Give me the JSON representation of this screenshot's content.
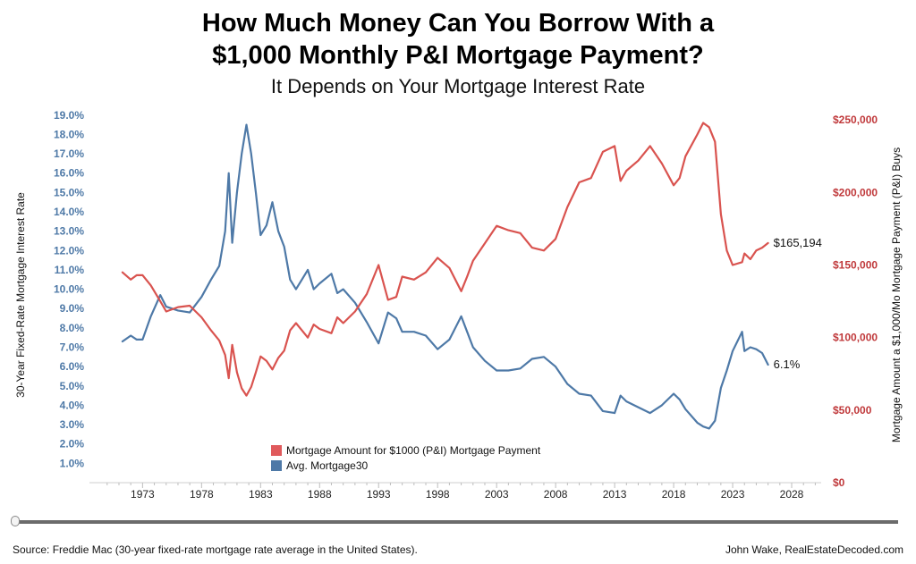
{
  "chart_data": {
    "type": "line",
    "title": "How Much Money Can You Borrow With a $1,000 Monthly P&I Mortgage Payment?",
    "title_line1": "How Much Money Can You Borrow With a",
    "title_line2": "$1,000 Monthly P&I Mortgage Payment?",
    "subtitle": "It Depends on Your Mortgage Interest Rate",
    "ylabel_left": "30-Year Fixed-Rate Mortgage Interest Rate",
    "ylabel_right": "Mortgage Amount a $1,000/Mo Mortgage Payment (P&I) Buys",
    "xlim": [
      1968.5,
      2030.5
    ],
    "ylim_left": [
      0,
      19.5
    ],
    "ylim_right": [
      0,
      260000
    ],
    "x_ticks": [
      "1973",
      "1978",
      "1983",
      "1988",
      "1993",
      "1998",
      "2003",
      "2008",
      "2013",
      "2018",
      "2023",
      "2028"
    ],
    "y_ticks_left": [
      "1.0%",
      "2.0%",
      "3.0%",
      "4.0%",
      "5.0%",
      "6.0%",
      "7.0%",
      "8.0%",
      "9.0%",
      "10.0%",
      "11.0%",
      "12.0%",
      "13.0%",
      "14.0%",
      "15.0%",
      "16.0%",
      "17.0%",
      "18.0%",
      "19.0%"
    ],
    "y_ticks_right": [
      "$0",
      "$50,000",
      "$100,000",
      "$150,000",
      "$200,000",
      "$250,000"
    ],
    "legend": {
      "position": "bottom-center",
      "items": [
        "Mortgage Amount for $1000 (P&I) Mortgage Payment",
        "Avg. Mortgage30"
      ]
    },
    "series": [
      {
        "name": "Avg. Mortgage30",
        "color": "#4e79a7",
        "axis": "left",
        "end_label": "6.1%",
        "x": [
          1971.3,
          1972,
          1972.5,
          1973,
          1973.7,
          1974.5,
          1975,
          1976,
          1977,
          1978,
          1978.8,
          1979.5,
          1980,
          1980.3,
          1980.6,
          1981,
          1981.4,
          1981.8,
          1982.2,
          1982.6,
          1983,
          1983.5,
          1984,
          1984.5,
          1985,
          1985.5,
          1986,
          1986.5,
          1987,
          1987.5,
          1988,
          1989,
          1989.5,
          1990,
          1991,
          1992,
          1993,
          1993.8,
          1994.5,
          1995,
          1996,
          1997,
          1998,
          1999,
          2000,
          2000.5,
          2001,
          2002,
          2003,
          2004,
          2005,
          2006,
          2007,
          2008,
          2009,
          2010,
          2011,
          2012,
          2013,
          2013.5,
          2014,
          2015,
          2016,
          2017,
          2018,
          2018.5,
          2019,
          2020,
          2020.5,
          2021,
          2021.5,
          2022,
          2022.5,
          2023,
          2023.8,
          2024,
          2024.5,
          2025,
          2025.5,
          2026
        ],
        "y": [
          7.3,
          7.6,
          7.4,
          7.4,
          8.6,
          9.7,
          9.1,
          8.9,
          8.8,
          9.6,
          10.5,
          11.2,
          13.0,
          16.0,
          12.4,
          15.0,
          17.0,
          18.5,
          17.0,
          15.0,
          12.8,
          13.3,
          14.5,
          13.0,
          12.2,
          10.5,
          10.0,
          10.5,
          11.0,
          10.0,
          10.3,
          10.8,
          9.8,
          10.0,
          9.3,
          8.3,
          7.2,
          8.8,
          8.5,
          7.8,
          7.8,
          7.6,
          6.9,
          7.4,
          8.6,
          7.8,
          7.0,
          6.3,
          5.8,
          5.8,
          5.9,
          6.4,
          6.5,
          6.0,
          5.1,
          4.6,
          4.5,
          3.7,
          3.6,
          4.5,
          4.2,
          3.9,
          3.6,
          4.0,
          4.6,
          4.3,
          3.8,
          3.1,
          2.9,
          2.8,
          3.2,
          4.9,
          5.8,
          6.8,
          7.8,
          6.8,
          7.0,
          6.9,
          6.7,
          6.1
        ]
      },
      {
        "name": "Mortgage Amount for $1000 (P&I) Mortgage Payment",
        "color": "#d9534f",
        "axis": "right",
        "end_label": "$165,194",
        "x": [
          1971.3,
          1972,
          1972.5,
          1973,
          1973.7,
          1974.5,
          1975,
          1976,
          1977,
          1978,
          1978.8,
          1979.5,
          1980,
          1980.3,
          1980.6,
          1981,
          1981.4,
          1981.8,
          1982.2,
          1982.6,
          1983,
          1983.5,
          1984,
          1984.5,
          1985,
          1985.5,
          1986,
          1986.5,
          1987,
          1987.5,
          1988,
          1989,
          1989.5,
          1990,
          1991,
          1992,
          1993,
          1993.8,
          1994.5,
          1995,
          1996,
          1997,
          1998,
          1999,
          2000,
          2000.5,
          2001,
          2002,
          2003,
          2004,
          2005,
          2006,
          2007,
          2008,
          2009,
          2010,
          2011,
          2012,
          2013,
          2013.5,
          2014,
          2015,
          2016,
          2017,
          2018,
          2018.5,
          2019,
          2020,
          2020.5,
          2021,
          2021.5,
          2022,
          2022.5,
          2023,
          2023.8,
          2024,
          2024.5,
          2025,
          2025.5,
          2026
        ],
        "y": [
          145000,
          140000,
          143000,
          143000,
          136000,
          125000,
          118000,
          121000,
          122000,
          114000,
          105000,
          98000,
          88000,
          72000,
          95000,
          76000,
          65000,
          60000,
          66000,
          76000,
          87000,
          84000,
          78000,
          86000,
          91000,
          105000,
          110000,
          105000,
          100000,
          109000,
          106000,
          103000,
          114000,
          110000,
          118000,
          130000,
          150000,
          126000,
          128000,
          142000,
          140000,
          145000,
          155000,
          148000,
          132000,
          142000,
          153000,
          165000,
          177000,
          174000,
          172000,
          162000,
          160000,
          168000,
          190000,
          207000,
          210000,
          228000,
          232000,
          208000,
          215000,
          222000,
          232000,
          220000,
          205000,
          210000,
          225000,
          240000,
          248000,
          245000,
          235000,
          185000,
          160000,
          150000,
          152000,
          158000,
          154000,
          160000,
          162000,
          165194
        ]
      }
    ]
  },
  "footer": {
    "source": "Source: Freddie Mac (30-year fixed-rate mortgage rate average in the United States).",
    "credit": "John Wake, RealEstateDecoded.com"
  },
  "controls": {
    "slider_label": "timeline-slider"
  }
}
